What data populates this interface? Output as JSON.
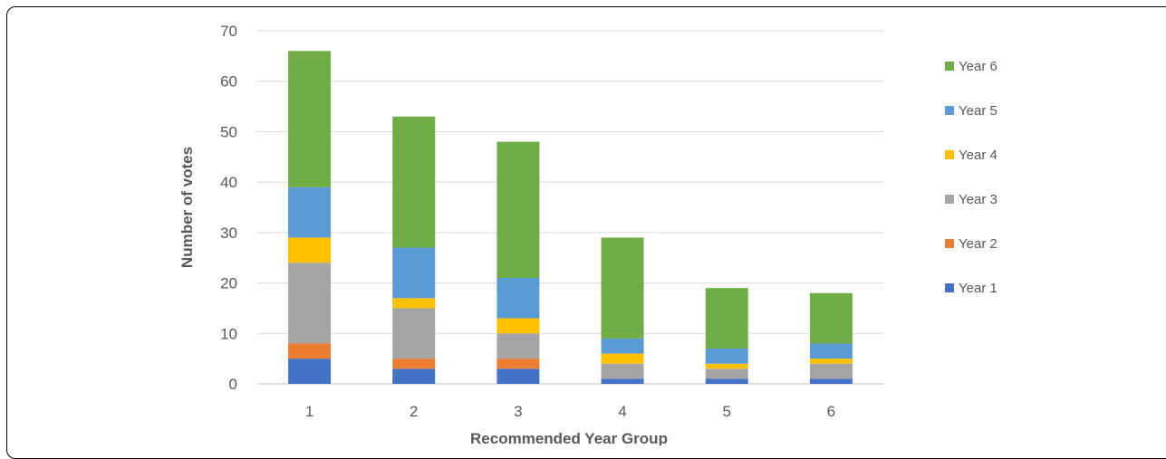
{
  "chart_data": {
    "type": "bar",
    "stacked": true,
    "title": "",
    "xlabel": "Recommended Year Group",
    "ylabel": "Number of votes",
    "ylim": [
      0,
      70
    ],
    "yticks": [
      0,
      10,
      20,
      30,
      40,
      50,
      60,
      70
    ],
    "grid": true,
    "legend_position": "right",
    "categories": [
      "1",
      "2",
      "3",
      "4",
      "5",
      "6"
    ],
    "series": [
      {
        "name": "Year 1",
        "color": "#4472C4",
        "values": [
          5,
          3,
          3,
          1,
          1,
          1
        ]
      },
      {
        "name": "Year 2",
        "color": "#ED7D31",
        "values": [
          3,
          2,
          2,
          0,
          0,
          0
        ]
      },
      {
        "name": "Year 3",
        "color": "#A5A5A5",
        "values": [
          16,
          10,
          5,
          3,
          2,
          3
        ]
      },
      {
        "name": "Year 4",
        "color": "#FFC000",
        "values": [
          5,
          2,
          3,
          2,
          1,
          1
        ]
      },
      {
        "name": "Year 5",
        "color": "#5B9BD5",
        "values": [
          10,
          10,
          8,
          3,
          3,
          3
        ]
      },
      {
        "name": "Year 6",
        "color": "#70AD47",
        "values": [
          27,
          26,
          27,
          20,
          12,
          10
        ]
      }
    ]
  }
}
